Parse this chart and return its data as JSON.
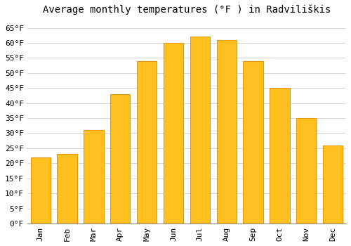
{
  "title": "Average monthly temperatures (°F ) in Radviliškis",
  "months": [
    "Jan",
    "Feb",
    "Mar",
    "Apr",
    "May",
    "Jun",
    "Jul",
    "Aug",
    "Sep",
    "Oct",
    "Nov",
    "Dec"
  ],
  "values": [
    22,
    23,
    31,
    43,
    54,
    60,
    62,
    61,
    54,
    45,
    35,
    26
  ],
  "bar_color": "#FFC020",
  "bar_edge_color": "#E8980A",
  "background_color": "#FFFFFF",
  "grid_color": "#CCCCCC",
  "ylim": [
    0,
    68
  ],
  "yticks": [
    0,
    5,
    10,
    15,
    20,
    25,
    30,
    35,
    40,
    45,
    50,
    55,
    60,
    65
  ],
  "title_fontsize": 10,
  "tick_fontsize": 8,
  "font_family": "monospace",
  "bar_width": 0.75
}
